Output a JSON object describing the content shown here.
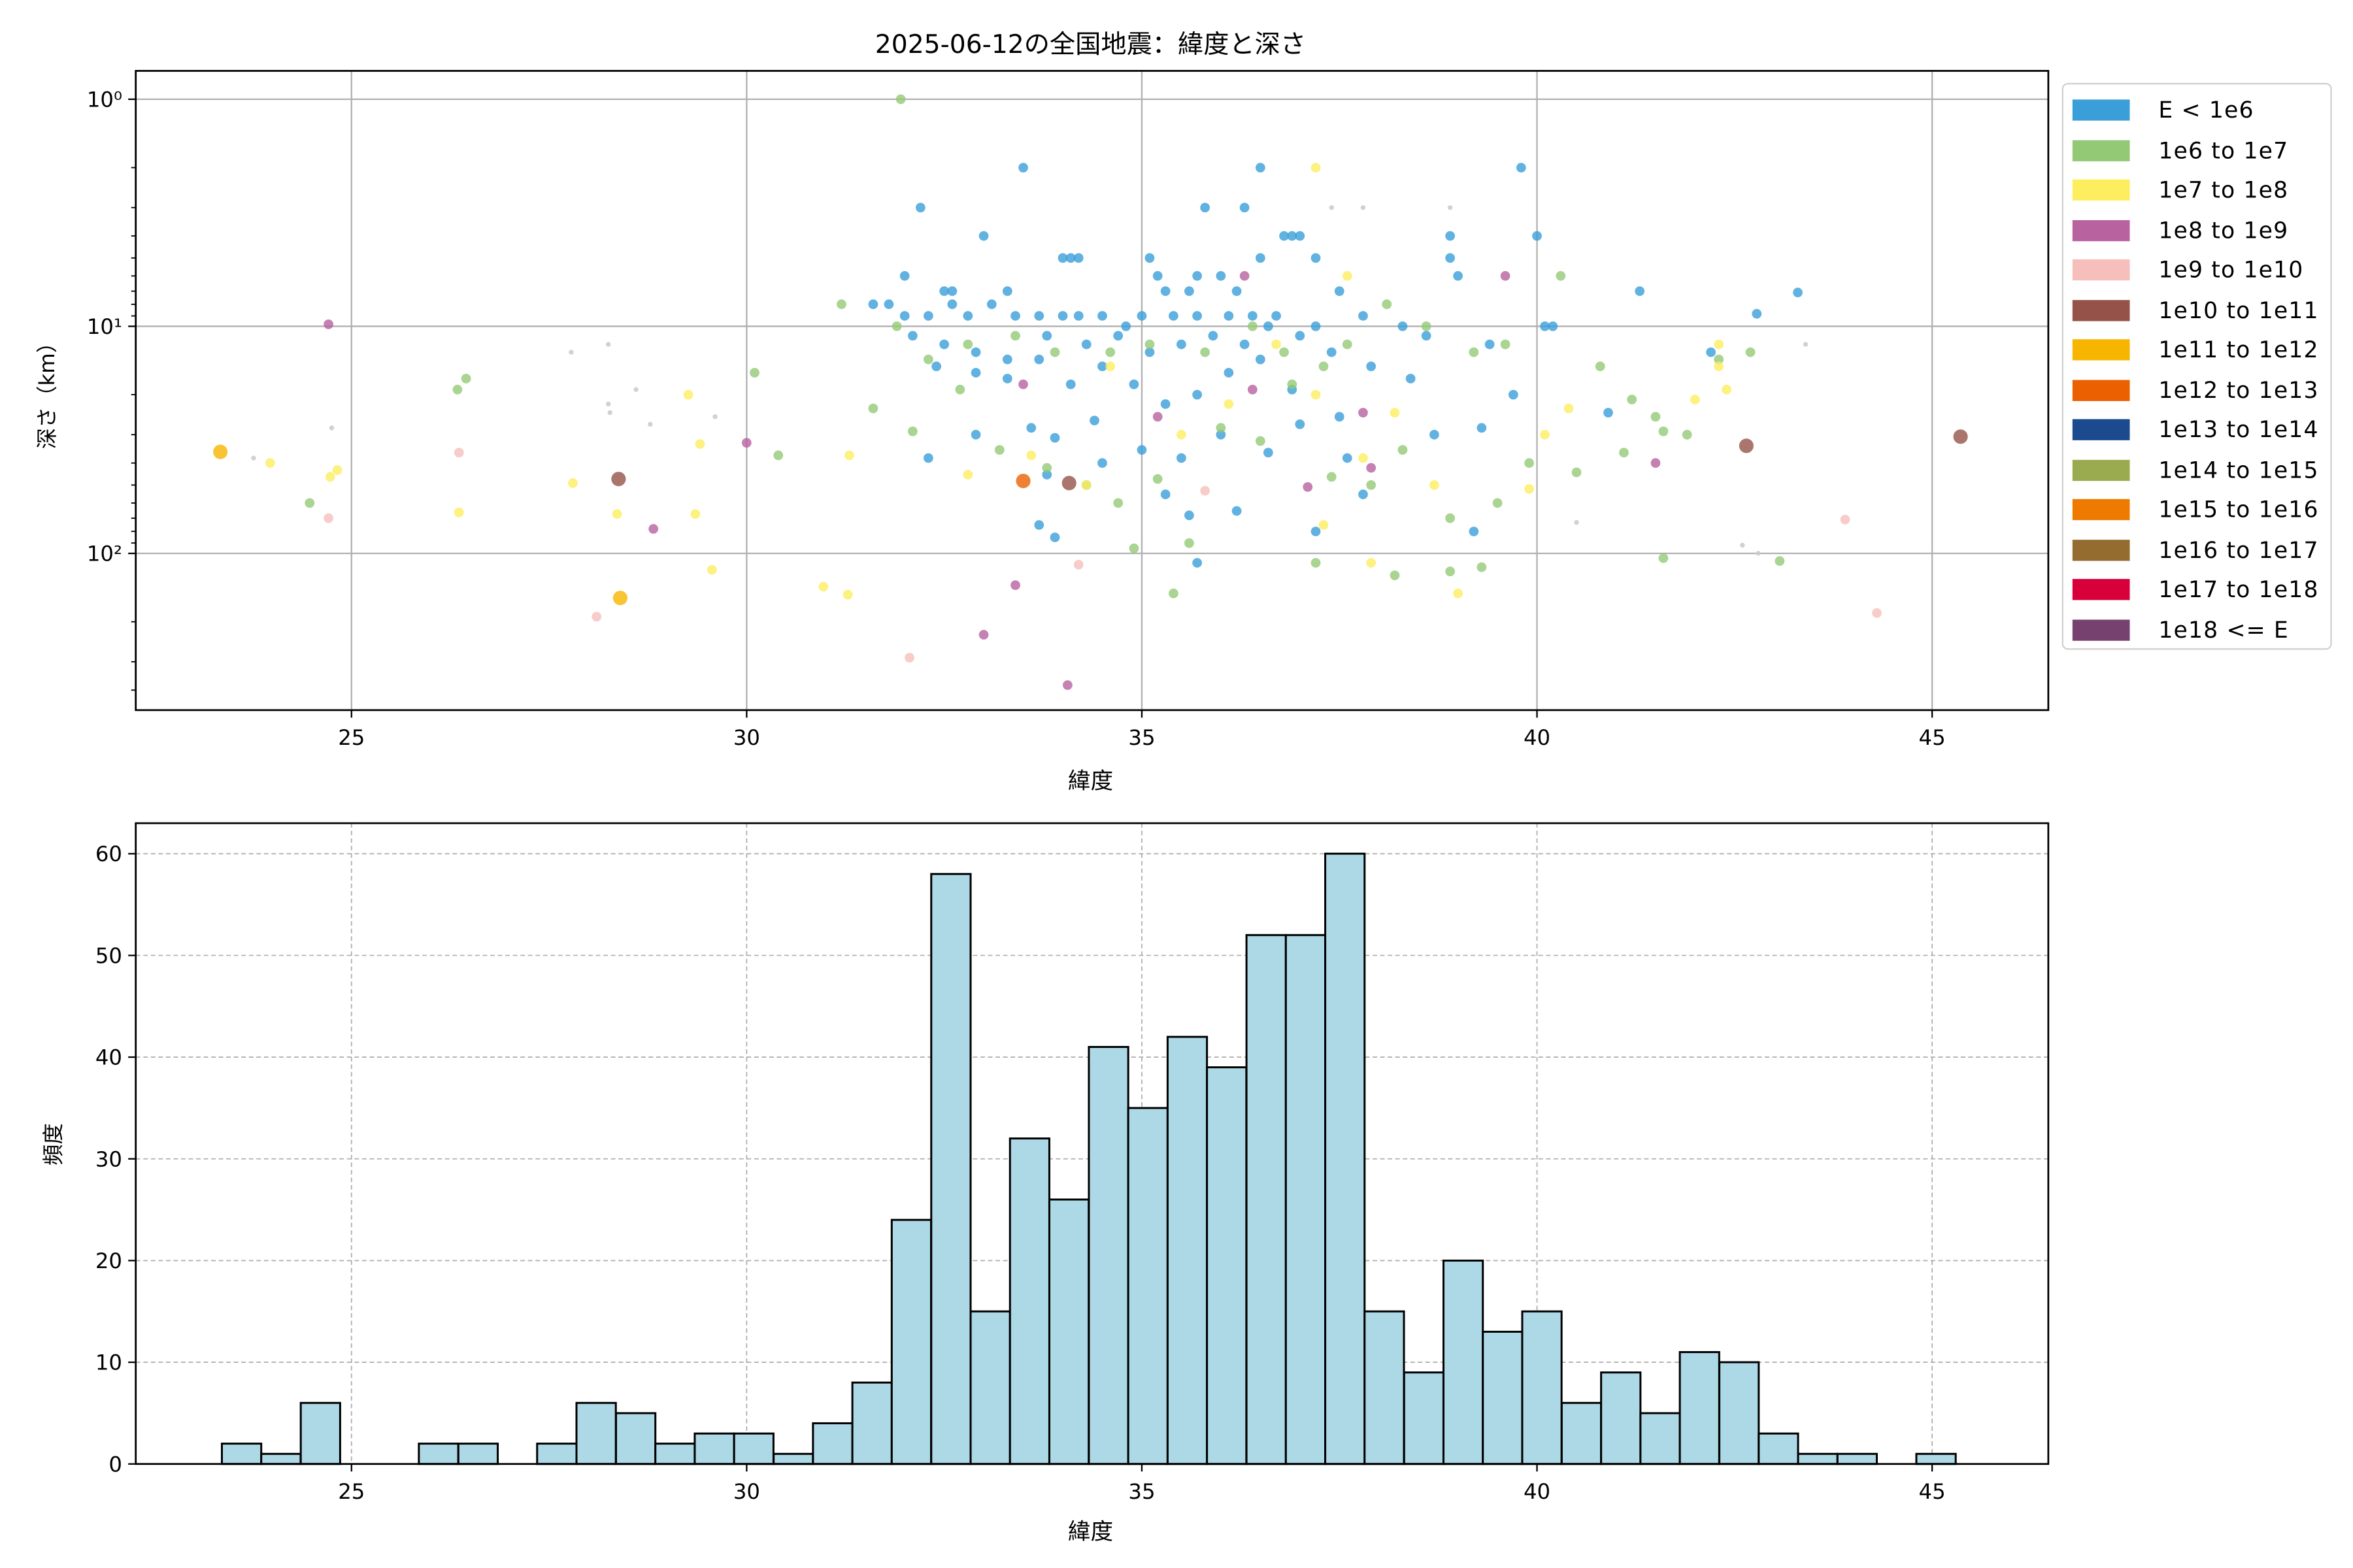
{
  "chart_data": [
    {
      "type": "scatter",
      "title": "2025-06-12の全国地震：緯度と深さ",
      "xlabel": "緯度",
      "ylabel": "深さ（km）",
      "xlim": [
        22.27,
        46.47
      ],
      "ylim": [
        490,
        0.75
      ],
      "yscale": "log",
      "y_inverted": true,
      "xticks": [
        "25",
        "30",
        "35",
        "40",
        "45"
      ],
      "xtick_values": [
        25,
        30,
        35,
        40,
        45
      ],
      "yticks": [
        "10⁰",
        "10¹",
        "10²"
      ],
      "ytick_values": [
        1,
        10,
        100
      ],
      "grid": true,
      "legend_placement": "outside-right",
      "legend": [
        {
          "label": "E < 1e6",
          "color": "#3a9fd9"
        },
        {
          "label": "1e6 to 1e7",
          "color": "#93c975"
        },
        {
          "label": "1e7 to 1e8",
          "color": "#fdee5f"
        },
        {
          "label": "1e8 to 1e9",
          "color": "#b862a0"
        },
        {
          "label": "1e9 to 1e10",
          "color": "#f6bfbc"
        },
        {
          "label": "1e10 to 1e11",
          "color": "#955249"
        },
        {
          "label": "1e11 to 1e12",
          "color": "#f8b500"
        },
        {
          "label": "1e12 to 1e13",
          "color": "#eb6101"
        },
        {
          "label": "1e13 to 1e14",
          "color": "#1b4a8e"
        },
        {
          "label": "1e14 to 1e15",
          "color": "#9aab4f"
        },
        {
          "label": "1e15 to 1e16",
          "color": "#ef7a00"
        },
        {
          "label": "1e16 to 1e17",
          "color": "#946c2f"
        },
        {
          "label": "1e17 to 1e18",
          "color": "#d7003a"
        },
        {
          "label": "1e18 <= E",
          "color": "#77416f"
        }
      ],
      "unknown_color": "#cccccc",
      "points_format": [
        "lat",
        "depth_km",
        "energy_class (-1 = unknown)"
      ],
      "points": [
        [
          23.34,
          35.7,
          6
        ],
        [
          23.76,
          38,
          -1
        ],
        [
          23.97,
          40,
          2
        ],
        [
          24.47,
          60,
          1
        ],
        [
          24.71,
          9.8,
          3
        ],
        [
          24.71,
          70,
          4
        ],
        [
          24.73,
          46,
          2
        ],
        [
          24.82,
          43,
          2
        ],
        [
          24.75,
          28,
          -1
        ],
        [
          26.34,
          19,
          1
        ],
        [
          26.45,
          17,
          1
        ],
        [
          26.36,
          36,
          4
        ],
        [
          26.36,
          66,
          2
        ],
        [
          27.8,
          49,
          2
        ],
        [
          27.78,
          13,
          -1
        ],
        [
          28.25,
          12,
          -1
        ],
        [
          28.25,
          22,
          -1
        ],
        [
          28.27,
          24,
          -1
        ],
        [
          28.6,
          19,
          -1
        ],
        [
          28.78,
          27,
          -1
        ],
        [
          28.38,
          47,
          5
        ],
        [
          28.36,
          67,
          2
        ],
        [
          28.4,
          157,
          6
        ],
        [
          28.1,
          190,
          4
        ],
        [
          28.82,
          78,
          3
        ],
        [
          29.26,
          20,
          2
        ],
        [
          29.41,
          33,
          2
        ],
        [
          29.35,
          67,
          2
        ],
        [
          29.56,
          118,
          2
        ],
        [
          29.6,
          25,
          -1
        ],
        [
          30.0,
          32.6,
          3
        ],
        [
          30.1,
          16,
          1
        ],
        [
          30.4,
          37,
          1
        ],
        [
          30.97,
          140,
          2
        ],
        [
          31.28,
          152,
          2
        ],
        [
          31.3,
          37,
          2
        ],
        [
          31.95,
          1.0,
          1
        ],
        [
          32.06,
          288,
          4
        ],
        [
          33.0,
          228,
          3
        ],
        [
          33.4,
          138,
          3
        ],
        [
          34.06,
          380,
          3
        ],
        [
          34.2,
          112,
          4
        ],
        [
          33.5,
          48,
          7
        ],
        [
          34.08,
          49,
          5
        ],
        [
          35.8,
          53,
          4
        ],
        [
          39.6,
          6,
          3
        ],
        [
          41.5,
          40,
          3
        ],
        [
          42.65,
          33.6,
          5
        ],
        [
          43.9,
          71,
          4
        ],
        [
          44.3,
          183,
          4
        ],
        [
          45.36,
          30.6,
          5
        ],
        [
          43.07,
          108,
          1
        ],
        [
          41.6,
          105,
          1
        ],
        [
          42.78,
          8.8,
          0
        ],
        [
          43.3,
          7.1,
          0
        ],
        [
          43.4,
          12,
          -1
        ],
        [
          42.6,
          92,
          -1
        ],
        [
          42.8,
          100,
          -1
        ],
        [
          40.5,
          73,
          -1
        ],
        [
          37.4,
          3,
          -1
        ],
        [
          37.8,
          3,
          -1
        ],
        [
          38.9,
          3,
          -1
        ],
        [
          33.5,
          2,
          0
        ],
        [
          36.5,
          2,
          0
        ],
        [
          37.2,
          2,
          2
        ],
        [
          39.8,
          2,
          0
        ],
        [
          32.2,
          3,
          0
        ],
        [
          35.8,
          3,
          0
        ],
        [
          36.3,
          3,
          0
        ],
        [
          36.8,
          4,
          0
        ],
        [
          33.0,
          4,
          0
        ],
        [
          34.1,
          5,
          0
        ],
        [
          34.2,
          5,
          0
        ],
        [
          34.0,
          5,
          0
        ],
        [
          32.0,
          6,
          0
        ],
        [
          32.5,
          7,
          0
        ],
        [
          32.6,
          7,
          0
        ],
        [
          33.3,
          7,
          0
        ],
        [
          34.5,
          9,
          0
        ],
        [
          35.1,
          5,
          0
        ],
        [
          35.2,
          6,
          0
        ],
        [
          35.3,
          7,
          0
        ],
        [
          35.6,
          7,
          0
        ],
        [
          35.7,
          6,
          0
        ],
        [
          36.0,
          6,
          0
        ],
        [
          36.2,
          7,
          0
        ],
        [
          36.5,
          5,
          0
        ],
        [
          36.9,
          4,
          0
        ],
        [
          37.0,
          4,
          0
        ],
        [
          37.2,
          5,
          0
        ],
        [
          37.5,
          7,
          0
        ],
        [
          38.9,
          4,
          0
        ],
        [
          38.9,
          5,
          0
        ],
        [
          39.0,
          6,
          0
        ],
        [
          40.0,
          4,
          0
        ],
        [
          40.2,
          10,
          0
        ],
        [
          41.3,
          7,
          0
        ],
        [
          31.6,
          8,
          0
        ],
        [
          31.8,
          8,
          0
        ],
        [
          32.0,
          9,
          0
        ],
        [
          32.3,
          9,
          0
        ],
        [
          32.6,
          8,
          0
        ],
        [
          32.8,
          9,
          0
        ],
        [
          33.1,
          8,
          0
        ],
        [
          33.4,
          9,
          0
        ],
        [
          33.7,
          9,
          0
        ],
        [
          34.0,
          9,
          0
        ],
        [
          34.2,
          9,
          0
        ],
        [
          34.8,
          10,
          0
        ],
        [
          35.0,
          9,
          0
        ],
        [
          35.4,
          9,
          0
        ],
        [
          35.7,
          9,
          0
        ],
        [
          36.1,
          9,
          0
        ],
        [
          36.4,
          9,
          0
        ],
        [
          36.7,
          9,
          0
        ],
        [
          37.2,
          10,
          0
        ],
        [
          37.8,
          9,
          0
        ],
        [
          38.3,
          10,
          0
        ],
        [
          32.1,
          11,
          0
        ],
        [
          32.5,
          12,
          0
        ],
        [
          32.9,
          13,
          0
        ],
        [
          33.3,
          14,
          0
        ],
        [
          33.8,
          11,
          0
        ],
        [
          34.3,
          12,
          0
        ],
        [
          34.7,
          11,
          0
        ],
        [
          35.1,
          13,
          0
        ],
        [
          35.5,
          12,
          0
        ],
        [
          35.9,
          11,
          0
        ],
        [
          36.3,
          12,
          0
        ],
        [
          36.6,
          10,
          0
        ],
        [
          37.0,
          11,
          0
        ],
        [
          37.4,
          13,
          0
        ],
        [
          38.6,
          11,
          0
        ],
        [
          39.4,
          12,
          0
        ],
        [
          40.1,
          10,
          0
        ],
        [
          32.4,
          15,
          0
        ],
        [
          32.9,
          16,
          0
        ],
        [
          33.3,
          17,
          0
        ],
        [
          33.7,
          14,
          0
        ],
        [
          34.1,
          18,
          0
        ],
        [
          34.5,
          15,
          0
        ],
        [
          34.9,
          18,
          0
        ],
        [
          35.3,
          22,
          0
        ],
        [
          35.7,
          20,
          0
        ],
        [
          36.1,
          16,
          0
        ],
        [
          36.5,
          14,
          0
        ],
        [
          36.9,
          19,
          0
        ],
        [
          37.5,
          25,
          0
        ],
        [
          37.9,
          15,
          0
        ],
        [
          38.4,
          17,
          0
        ],
        [
          39.3,
          28,
          0
        ],
        [
          39.7,
          20,
          0
        ],
        [
          40.9,
          24,
          0
        ],
        [
          42.2,
          13,
          0
        ],
        [
          33.6,
          28,
          0
        ],
        [
          33.9,
          31,
          0
        ],
        [
          34.4,
          26,
          0
        ],
        [
          35.0,
          35,
          0
        ],
        [
          35.5,
          38,
          0
        ],
        [
          36.0,
          30,
          0
        ],
        [
          36.6,
          36,
          0
        ],
        [
          37.0,
          27,
          0
        ],
        [
          37.6,
          38,
          0
        ],
        [
          38.7,
          30,
          0
        ],
        [
          32.3,
          38,
          0
        ],
        [
          32.9,
          30,
          0
        ],
        [
          33.8,
          45,
          0
        ],
        [
          34.5,
          40,
          0
        ],
        [
          35.3,
          55,
          0
        ],
        [
          35.6,
          68,
          0
        ],
        [
          36.2,
          65,
          0
        ],
        [
          37.2,
          80,
          0
        ],
        [
          37.8,
          55,
          0
        ],
        [
          39.2,
          80,
          0
        ],
        [
          33.7,
          75,
          0
        ],
        [
          33.9,
          85,
          0
        ],
        [
          35.7,
          110,
          0
        ],
        [
          31.2,
          8,
          1
        ],
        [
          31.9,
          10,
          1
        ],
        [
          32.3,
          14,
          1
        ],
        [
          32.8,
          12,
          1
        ],
        [
          33.4,
          11,
          1
        ],
        [
          33.9,
          13,
          1
        ],
        [
          34.6,
          13,
          1
        ],
        [
          35.1,
          12,
          1
        ],
        [
          35.8,
          13,
          1
        ],
        [
          36.4,
          10,
          1
        ],
        [
          36.8,
          13,
          1
        ],
        [
          37.3,
          15,
          1
        ],
        [
          37.6,
          12,
          1
        ],
        [
          38.1,
          8,
          1
        ],
        [
          38.6,
          10,
          1
        ],
        [
          39.2,
          13,
          1
        ],
        [
          39.6,
          12,
          1
        ],
        [
          40.3,
          6,
          1
        ],
        [
          40.8,
          15,
          1
        ],
        [
          41.2,
          21,
          1
        ],
        [
          41.5,
          25,
          1
        ],
        [
          41.9,
          30,
          1
        ],
        [
          42.3,
          14,
          1
        ],
        [
          42.7,
          13,
          1
        ],
        [
          31.6,
          23,
          1
        ],
        [
          32.1,
          29,
          1
        ],
        [
          32.7,
          19,
          1
        ],
        [
          33.2,
          35,
          1
        ],
        [
          33.8,
          42,
          1
        ],
        [
          34.3,
          50,
          1
        ],
        [
          34.7,
          60,
          1
        ],
        [
          35.2,
          47,
          1
        ],
        [
          35.6,
          90,
          1
        ],
        [
          36.0,
          28,
          1
        ],
        [
          36.5,
          32,
          1
        ],
        [
          36.9,
          18,
          1
        ],
        [
          37.4,
          46,
          1
        ],
        [
          37.9,
          50,
          1
        ],
        [
          38.3,
          35,
          1
        ],
        [
          38.9,
          70,
          1
        ],
        [
          39.5,
          60,
          1
        ],
        [
          39.9,
          40,
          1
        ],
        [
          40.5,
          44,
          1
        ],
        [
          41.1,
          36,
          1
        ],
        [
          41.6,
          29,
          1
        ],
        [
          34.9,
          95,
          1
        ],
        [
          35.4,
          150,
          1
        ],
        [
          37.2,
          110,
          1
        ],
        [
          38.9,
          120,
          1
        ],
        [
          39.3,
          115,
          1
        ],
        [
          38.2,
          125,
          1
        ],
        [
          32.8,
          45,
          2
        ],
        [
          33.6,
          37,
          2
        ],
        [
          34.3,
          50,
          2
        ],
        [
          34.6,
          15,
          2
        ],
        [
          35.5,
          30,
          2
        ],
        [
          36.1,
          22,
          2
        ],
        [
          36.7,
          12,
          2
        ],
        [
          37.2,
          20,
          2
        ],
        [
          37.6,
          6,
          2
        ],
        [
          37.8,
          38,
          2
        ],
        [
          38.2,
          24,
          2
        ],
        [
          38.7,
          50,
          2
        ],
        [
          39.0,
          150,
          2
        ],
        [
          39.9,
          52,
          2
        ],
        [
          40.1,
          30,
          2
        ],
        [
          40.4,
          23,
          2
        ],
        [
          42.0,
          21,
          2
        ],
        [
          42.3,
          15,
          2
        ],
        [
          42.4,
          19,
          2
        ],
        [
          42.3,
          12,
          2
        ],
        [
          37.3,
          75,
          2
        ],
        [
          37.9,
          110,
          2
        ],
        [
          33.5,
          18,
          3
        ],
        [
          35.2,
          25,
          3
        ],
        [
          36.4,
          19,
          3
        ],
        [
          36.3,
          6,
          3
        ],
        [
          37.1,
          51,
          3
        ],
        [
          37.8,
          24,
          3
        ],
        [
          37.9,
          42,
          3
        ]
      ]
    },
    {
      "type": "bar",
      "subtype": "histogram",
      "title": "",
      "xlabel": "緯度",
      "ylabel": "頻度",
      "xlim": [
        22.27,
        46.47
      ],
      "ylim": [
        0,
        63
      ],
      "xticks": [
        "25",
        "30",
        "35",
        "40",
        "45"
      ],
      "xtick_values": [
        25,
        30,
        35,
        40,
        45
      ],
      "yticks": [
        "0",
        "10",
        "20",
        "30",
        "40",
        "50",
        "60"
      ],
      "ytick_values": [
        0,
        10,
        20,
        30,
        40,
        50,
        60
      ],
      "grid": true,
      "bar_color": "#add8e6",
      "edge_color": "#000000",
      "bin_start": 23.36,
      "bin_width": 0.4986,
      "counts": [
        2,
        1,
        6,
        0,
        0,
        2,
        2,
        0,
        2,
        6,
        5,
        2,
        3,
        3,
        1,
        4,
        8,
        24,
        58,
        15,
        32,
        26,
        41,
        35,
        42,
        39,
        52,
        52,
        60,
        15,
        9,
        20,
        13,
        15,
        6,
        9,
        5,
        11,
        10,
        3,
        1,
        1,
        0,
        1
      ]
    }
  ]
}
